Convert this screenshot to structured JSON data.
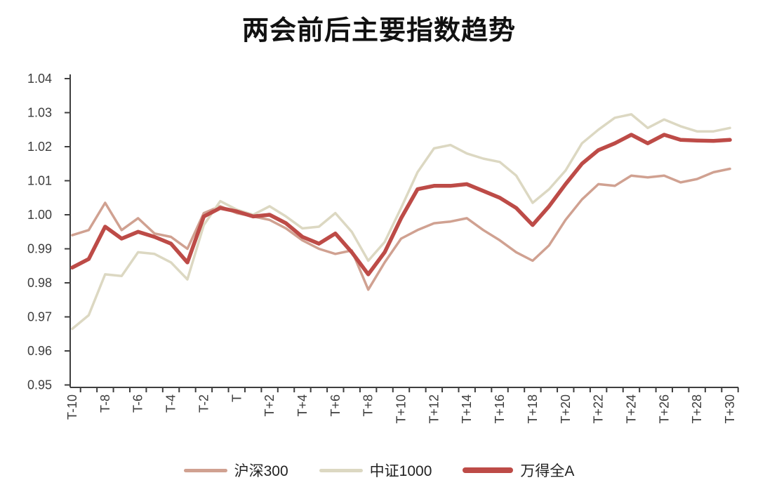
{
  "chart_data": {
    "type": "line",
    "title": "两会前后主要指数趋势",
    "xlabel": "",
    "ylabel": "",
    "ylim": [
      0.95,
      1.04
    ],
    "ytick_step": 0.01,
    "y_tick_labels": [
      "0.95",
      "0.96",
      "0.97",
      "0.98",
      "0.99",
      "1.00",
      "1.01",
      "1.02",
      "1.03",
      "1.04"
    ],
    "grid": false,
    "legend_position": "bottom",
    "xtick_label_step": 2,
    "x_tick_labels_visible": [
      "T-10",
      "T-8",
      "T-6",
      "T-4",
      "T-2",
      "T",
      "T+2",
      "T+4",
      "T+6",
      "T+8",
      "T+10",
      "T+12",
      "T+14",
      "T+16",
      "T+18",
      "T+20",
      "T+22",
      "T+24",
      "T+26",
      "T+28",
      "T+30"
    ],
    "categories": [
      "T-10",
      "T-9",
      "T-8",
      "T-7",
      "T-6",
      "T-5",
      "T-4",
      "T-3",
      "T-2",
      "T-1",
      "T",
      "T+1",
      "T+2",
      "T+3",
      "T+4",
      "T+5",
      "T+6",
      "T+7",
      "T+8",
      "T+9",
      "T+10",
      "T+11",
      "T+12",
      "T+13",
      "T+14",
      "T+15",
      "T+16",
      "T+17",
      "T+18",
      "T+19",
      "T+20",
      "T+21",
      "T+22",
      "T+23",
      "T+24",
      "T+25",
      "T+26",
      "T+27",
      "T+28",
      "T+29",
      "T+30"
    ],
    "axis_color": "#3f3f3f",
    "tick_label_color": "#3d3d3d",
    "series": [
      {
        "name": "沪深300",
        "color": "#d0a191",
        "line_width": 3.5,
        "values": [
          0.994,
          0.9955,
          1.0035,
          0.9955,
          0.999,
          0.9945,
          0.9935,
          0.99,
          1.0005,
          1.0025,
          1.0005,
          0.9995,
          0.9985,
          0.996,
          0.9925,
          0.99,
          0.9885,
          0.9895,
          0.978,
          0.986,
          0.993,
          0.9955,
          0.9975,
          0.998,
          0.999,
          0.9955,
          0.9925,
          0.989,
          0.9865,
          0.991,
          0.9985,
          1.0045,
          1.009,
          1.0085,
          1.0115,
          1.011,
          1.0115,
          1.0095,
          1.0105,
          1.0125,
          1.0135
        ]
      },
      {
        "name": "中证1000",
        "color": "#dcd8c2",
        "line_width": 3.5,
        "values": [
          0.9665,
          0.9705,
          0.9825,
          0.982,
          0.989,
          0.9885,
          0.986,
          0.981,
          0.997,
          1.004,
          1.0015,
          1.0,
          1.0025,
          0.9995,
          0.996,
          0.9965,
          1.0005,
          0.995,
          0.9865,
          0.992,
          1.002,
          1.0125,
          1.0195,
          1.0205,
          1.018,
          1.0165,
          1.0155,
          1.0115,
          1.0035,
          1.0075,
          1.013,
          1.021,
          1.025,
          1.0285,
          1.0295,
          1.0255,
          1.028,
          1.026,
          1.0245,
          1.0245,
          1.0255
        ]
      },
      {
        "name": "万得全A",
        "color": "#bd4b47",
        "line_width": 5.5,
        "values": [
          0.9845,
          0.987,
          0.9965,
          0.993,
          0.995,
          0.9935,
          0.9915,
          0.986,
          0.9995,
          1.002,
          1.001,
          0.9995,
          1.0,
          0.9975,
          0.9935,
          0.9915,
          0.9945,
          0.989,
          0.9825,
          0.989,
          0.999,
          1.0075,
          1.0085,
          1.0085,
          1.009,
          1.007,
          1.005,
          1.002,
          0.997,
          1.0025,
          1.009,
          1.015,
          1.019,
          1.021,
          1.0235,
          1.021,
          1.0235,
          1.022,
          1.0218,
          1.0217,
          1.022
        ]
      }
    ]
  }
}
